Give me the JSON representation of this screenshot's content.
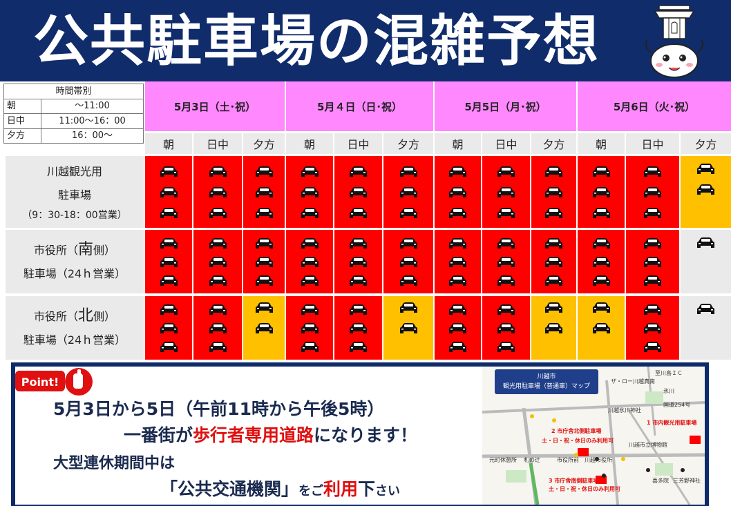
{
  "title": "公共駐車場の混雑予想",
  "legend": {
    "header": "時間帯別",
    "rows": [
      {
        "key": "朝",
        "value": "〜11:00"
      },
      {
        "key": "日中",
        "value": "11:00〜16：00"
      },
      {
        "key": "夕方",
        "value": "16：00〜"
      }
    ]
  },
  "dates": [
    "5月3日（土･祝）",
    "5月４日（日･祝）",
    "5月5日（月･祝）",
    "5月6日（火･祝）"
  ],
  "periods": [
    "朝",
    "日中",
    "夕方"
  ],
  "lots": [
    {
      "line1": "川越観光用",
      "line2": "駐車場",
      "line3": "（9：30-18：00営業）",
      "levels": [
        3,
        3,
        3,
        3,
        3,
        3,
        3,
        3,
        3,
        3,
        3,
        2
      ]
    },
    {
      "line1a": "市役所（",
      "line1b": "南",
      "line1c": "側）",
      "line2": "駐車場（24ｈ営業）",
      "levels": [
        3,
        3,
        3,
        3,
        3,
        3,
        3,
        3,
        3,
        3,
        3,
        1
      ]
    },
    {
      "line1a": "市役所（",
      "line1b": "北",
      "line1c": "側）",
      "line2": "駐車場（24ｈ営業）",
      "levels": [
        3,
        3,
        2,
        3,
        3,
        2,
        3,
        3,
        2,
        2,
        3,
        1
      ]
    }
  ],
  "colors": {
    "header_bg": "#102c6b",
    "red": "#ff0000",
    "orange": "#ffc000",
    "gray": "#eaeaea",
    "date_pink": "#ff88ff"
  },
  "point": {
    "badge": "Point!",
    "msg1": "5月3日から5日（午前11時から午後5時）",
    "msg2_a": "一番街が",
    "msg2_b": "歩行者専用道路",
    "msg2_c": "になります！",
    "msg3": "大型連休期間中は",
    "msg4_a": "「公共交通機関」",
    "msg4_b": "をご",
    "msg4_c": "利用",
    "msg4_d": "下",
    "msg4_e": "さい"
  },
  "map": {
    "title_line1": "川越市",
    "title_line2": "観光用駐車場（普通車）マップ",
    "labels": {
      "l1": "至川島ＩＣ",
      "l2": "ザ・ロー川越真南",
      "l3": "氷川",
      "l4": "国道254号",
      "l5": "川越氷川神社",
      "l6": "1 市内観光用駐車場",
      "l7": "2 市庁舎北側駐車場",
      "l8": "土・日・祝・休日のみ利用可",
      "l9": "3 市庁舎南側駐車場",
      "l10": "土・日・祝・休日のみ利用可",
      "l11": "川越市役所",
      "l12": "元町休憩所",
      "l13": "札の辻",
      "l14": "市役所前",
      "l15": "川越市立博物館",
      "l16": "三芳野神社",
      "l17": "喜多院"
    }
  },
  "icons": {
    "car": "car-icon",
    "mascot": "mascot-icon",
    "point": "point-hand-icon"
  }
}
